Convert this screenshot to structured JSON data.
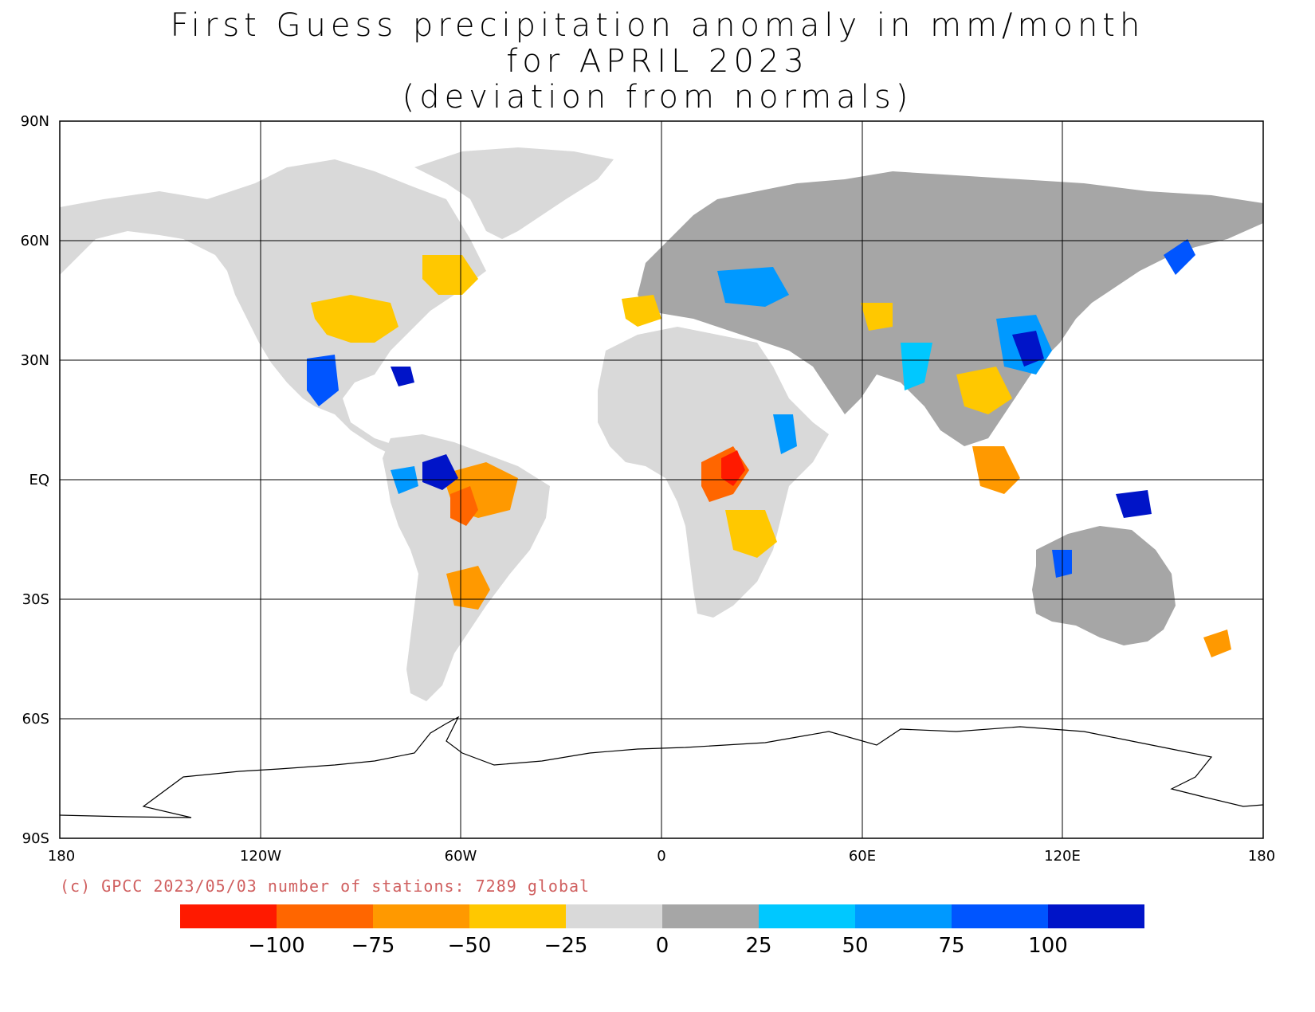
{
  "title": {
    "line1": "First Guess precipitation anomaly in mm/month",
    "line2": "for APRIL 2023",
    "line3": "(deviation from normals)"
  },
  "axes": {
    "lat_ticks": [
      "90N",
      "60N",
      "30N",
      "EQ",
      "30S",
      "60S",
      "90S"
    ],
    "lon_ticks": [
      "180",
      "120W",
      "60W",
      "0",
      "60E",
      "120E",
      "180"
    ]
  },
  "credit": "(c) GPCC 2023/05/03 number of stations: 7289 global",
  "colorbar": {
    "colors": [
      "#ff1a00",
      "#ff6600",
      "#ff9900",
      "#ffc800",
      "#d9d9d9",
      "#a6a6a6",
      "#00c8ff",
      "#0099ff",
      "#0055ff",
      "#0014c8"
    ],
    "labels": [
      "-100",
      "-75",
      "-50",
      "-25",
      "0",
      "25",
      "50",
      "75",
      "100"
    ]
  },
  "map": {
    "land_colors": {
      "near_zero": "#d9d9d9",
      "slight_wet": "#a6a6a6"
    }
  }
}
